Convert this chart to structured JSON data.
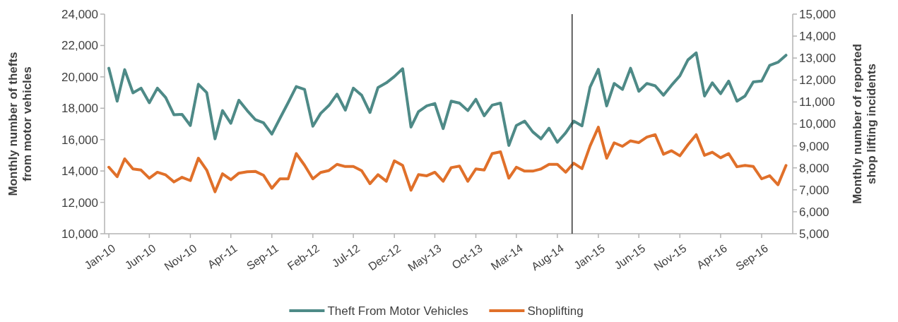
{
  "chart_data": {
    "type": "line",
    "ylabel": "Monthly number of thefts from motor vehicles",
    "y2label": "Monthly number of reported shop lifting incidents",
    "x": [
      "2010-01",
      "2010-02",
      "2010-03",
      "2010-04",
      "2010-05",
      "2010-06",
      "2010-07",
      "2010-08",
      "2010-09",
      "2010-10",
      "2010-11",
      "2010-12",
      "2011-01",
      "2011-02",
      "2011-03",
      "2011-04",
      "2011-05",
      "2011-06",
      "2011-07",
      "2011-08",
      "2011-09",
      "2011-10",
      "2011-11",
      "2011-12",
      "2012-01",
      "2012-02",
      "2012-03",
      "2012-04",
      "2012-05",
      "2012-06",
      "2012-07",
      "2012-08",
      "2012-09",
      "2012-10",
      "2012-11",
      "2012-12",
      "2013-01",
      "2013-02",
      "2013-03",
      "2013-04",
      "2013-05",
      "2013-06",
      "2013-07",
      "2013-08",
      "2013-09",
      "2013-10",
      "2013-11",
      "2013-12",
      "2014-01",
      "2014-02",
      "2014-03",
      "2014-04",
      "2014-05",
      "2014-06",
      "2014-07",
      "2014-08",
      "2014-09",
      "2014-10",
      "2014-11",
      "2014-12",
      "2015-01",
      "2015-02",
      "2015-03",
      "2015-04",
      "2015-05",
      "2015-06",
      "2015-07",
      "2015-08",
      "2015-09",
      "2015-10",
      "2015-11",
      "2015-12",
      "2016-01",
      "2016-02",
      "2016-03",
      "2016-04",
      "2016-05",
      "2016-06",
      "2016-07",
      "2016-08",
      "2016-09",
      "2016-10",
      "2016-11",
      "2016-12"
    ],
    "xlim": [
      "2009-12-16",
      "2016-12-26"
    ],
    "xticks": [
      {
        "value": "2010-01",
        "label": "Jan-10"
      },
      {
        "value": "2010-06",
        "label": "Jun-10"
      },
      {
        "value": "2010-11",
        "label": "Nov-10"
      },
      {
        "value": "2011-04",
        "label": "Apr-11"
      },
      {
        "value": "2011-09",
        "label": "Sep-11"
      },
      {
        "value": "2012-02",
        "label": "Feb-12"
      },
      {
        "value": "2012-07",
        "label": "Jul-12"
      },
      {
        "value": "2012-12",
        "label": "Dec-12"
      },
      {
        "value": "2013-05",
        "label": "May-13"
      },
      {
        "value": "2013-10",
        "label": "Oct-13"
      },
      {
        "value": "2014-03",
        "label": "Mar-14"
      },
      {
        "value": "2014-08",
        "label": "Aug-14"
      },
      {
        "value": "2015-01",
        "label": "Jan-15"
      },
      {
        "value": "2015-06",
        "label": "Jun-15"
      },
      {
        "value": "2015-11",
        "label": "Nov-15"
      },
      {
        "value": "2016-04",
        "label": "Apr-16"
      },
      {
        "value": "2016-09",
        "label": "Sep-16"
      }
    ],
    "ylim": [
      10000,
      24000
    ],
    "yticks": [
      {
        "value": 10000,
        "label": "10,000"
      },
      {
        "value": 12000,
        "label": "12,000"
      },
      {
        "value": 14000,
        "label": "14,000"
      },
      {
        "value": 16000,
        "label": "16,000"
      },
      {
        "value": 18000,
        "label": "18,000"
      },
      {
        "value": 20000,
        "label": "20,000"
      },
      {
        "value": 22000,
        "label": "22,000"
      },
      {
        "value": 24000,
        "label": "24,000"
      }
    ],
    "y2lim": [
      5000,
      15000
    ],
    "y2ticks": [
      {
        "value": 5000,
        "label": "5,000"
      },
      {
        "value": 6000,
        "label": "6,000"
      },
      {
        "value": 7000,
        "label": "7,000"
      },
      {
        "value": 8000,
        "label": "8,000"
      },
      {
        "value": 9000,
        "label": "9,000"
      },
      {
        "value": 10000,
        "label": "10,000"
      },
      {
        "value": 11000,
        "label": "11,000"
      },
      {
        "value": 12000,
        "label": "12,000"
      },
      {
        "value": 13000,
        "label": "13,000"
      },
      {
        "value": 14000,
        "label": "14,000"
      },
      {
        "value": 15000,
        "label": "15,000"
      }
    ],
    "series": [
      {
        "name": "Theft From Motor Vehicles",
        "color": "#4e8a87",
        "values": [
          20550,
          18450,
          20460,
          18980,
          19280,
          18350,
          19280,
          18680,
          17580,
          17610,
          16900,
          19530,
          19000,
          16050,
          17850,
          17040,
          18510,
          17850,
          17280,
          17070,
          16350,
          17350,
          18360,
          19380,
          19200,
          16850,
          17670,
          18180,
          18900,
          17880,
          19280,
          18830,
          17730,
          19320,
          19620,
          20020,
          20520,
          16800,
          17780,
          18150,
          18300,
          16700,
          18450,
          18330,
          17850,
          18570,
          17520,
          18200,
          18330,
          15630,
          16900,
          17180,
          16500,
          16050,
          16730,
          15830,
          16430,
          17180,
          16880,
          19350,
          20480,
          18150,
          19580,
          19200,
          20550,
          19080,
          19580,
          19430,
          18830,
          19470,
          20070,
          21080,
          21530,
          18780,
          19620,
          18930,
          19730,
          18450,
          18780,
          19680,
          19730,
          20730,
          20930,
          21380
        ]
      },
      {
        "name": "Shoplifting",
        "color": "#e0702a",
        "axis": "y2",
        "values": [
          8030,
          7600,
          8410,
          7950,
          7900,
          7530,
          7800,
          7680,
          7360,
          7570,
          7420,
          8440,
          7900,
          6910,
          7730,
          7460,
          7760,
          7820,
          7840,
          7660,
          7070,
          7500,
          7500,
          8650,
          8120,
          7500,
          7790,
          7880,
          8160,
          8060,
          8060,
          7870,
          7280,
          7690,
          7390,
          8320,
          8110,
          6980,
          7690,
          7640,
          7800,
          7390,
          8010,
          8080,
          7390,
          7950,
          7900,
          8650,
          8730,
          7530,
          8030,
          7850,
          7850,
          7950,
          8160,
          8160,
          7800,
          8210,
          7960,
          9000,
          9850,
          8440,
          9140,
          8980,
          9230,
          9150,
          9400,
          9510,
          8620,
          8780,
          8550,
          9050,
          9510,
          8570,
          8710,
          8460,
          8650,
          8050,
          8110,
          8060,
          7500,
          7640,
          7230,
          8110
        ]
      }
    ],
    "ref_lines": [
      {
        "axis": "x",
        "value": "2014-09-25",
        "color": "#333333"
      }
    ],
    "legend": "bottom",
    "grid": false,
    "line_style": "solid",
    "marker": "none"
  }
}
